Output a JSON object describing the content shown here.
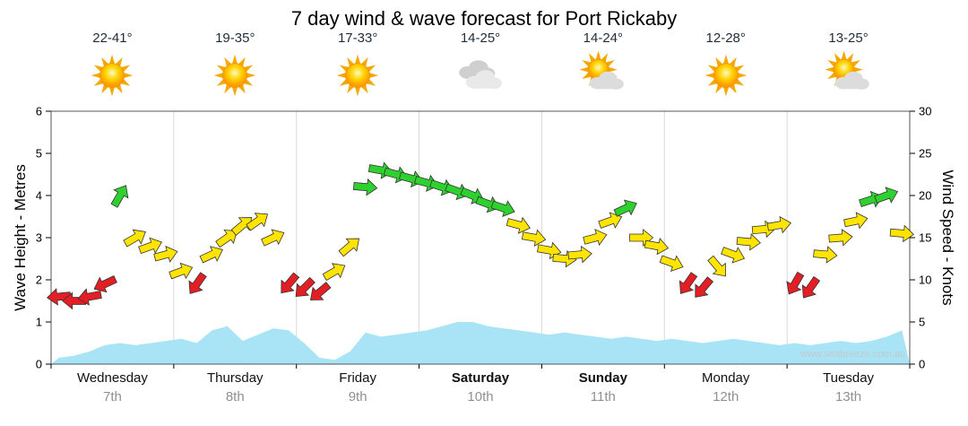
{
  "title": "7 day wind & wave forecast for Port Rickaby",
  "watermark": "www.seabreeze.com.au",
  "days": [
    {
      "name": "Wednesday",
      "date": "7th",
      "temp": "22-41°",
      "icon": "sunny",
      "weekend": false
    },
    {
      "name": "Thursday",
      "date": "8th",
      "temp": "19-35°",
      "icon": "sunny",
      "weekend": false
    },
    {
      "name": "Friday",
      "date": "9th",
      "temp": "17-33°",
      "icon": "sunny",
      "weekend": false
    },
    {
      "name": "Saturday",
      "date": "10th",
      "temp": "14-25°",
      "icon": "cloudy",
      "weekend": true
    },
    {
      "name": "Sunday",
      "date": "11th",
      "temp": "14-24°",
      "icon": "partly-cloudy",
      "weekend": true
    },
    {
      "name": "Monday",
      "date": "12th",
      "temp": "12-28°",
      "icon": "sunny",
      "weekend": false
    },
    {
      "name": "Tuesday",
      "date": "13th",
      "temp": "13-25°",
      "icon": "partly-cloudy",
      "weekend": false
    }
  ],
  "chart_data": {
    "type": "area",
    "title": "7 day wind & wave forecast for Port Rickaby",
    "points_per_day": 8,
    "categories": [
      "Wednesday 7th",
      "Thursday 8th",
      "Friday 9th",
      "Saturday 10th",
      "Sunday 11th",
      "Monday 12th",
      "Tuesday 13th"
    ],
    "y_left": {
      "label": "Wave Height - Metres",
      "min": 0,
      "max": 6,
      "ticks": [
        0,
        1,
        2,
        3,
        4,
        5,
        6
      ]
    },
    "y_right": {
      "label": "Wind Speed - Knots",
      "min": 0,
      "max": 30,
      "ticks": [
        0,
        5,
        10,
        15,
        20,
        25,
        30
      ]
    },
    "grid": "vertical-day-boundaries",
    "legend": "none",
    "series": [
      {
        "name": "Wind Speed",
        "type": "wind-arrows",
        "axis": "right",
        "units": "knots",
        "values": [
          8,
          7.5,
          8,
          9.5,
          20,
          15,
          14,
          13,
          11,
          9.5,
          13,
          15,
          16.5,
          17,
          15,
          9.5,
          9,
          8.5,
          11,
          14,
          21,
          23,
          22.5,
          22,
          21.5,
          21,
          20.5,
          20,
          19,
          18.5,
          16.5,
          15,
          13.5,
          12.5,
          13,
          15,
          17,
          18.5,
          15,
          14,
          12,
          9.5,
          9,
          11.5,
          13,
          14.5,
          16,
          16.5,
          9.5,
          9,
          13,
          15,
          17,
          19.5,
          20,
          15.5
        ],
        "directions_deg": [
          265,
          270,
          260,
          245,
          30,
          60,
          70,
          75,
          70,
          215,
          65,
          55,
          50,
          55,
          65,
          220,
          225,
          230,
          60,
          50,
          95,
          100,
          105,
          105,
          105,
          108,
          110,
          112,
          110,
          108,
          105,
          100,
          100,
          95,
          85,
          75,
          70,
          65,
          90,
          100,
          110,
          215,
          220,
          140,
          110,
          95,
          85,
          80,
          210,
          215,
          95,
          85,
          78,
          72,
          70,
          95
        ]
      },
      {
        "name": "Wave Height",
        "type": "area",
        "axis": "left",
        "units": "metres",
        "values": [
          0.15,
          0.2,
          0.3,
          0.45,
          0.5,
          0.45,
          0.5,
          0.55,
          0.6,
          0.5,
          0.8,
          0.9,
          0.55,
          0.7,
          0.85,
          0.8,
          0.5,
          0.15,
          0.1,
          0.3,
          0.75,
          0.65,
          0.7,
          0.75,
          0.8,
          0.9,
          1.0,
          1.0,
          0.9,
          0.85,
          0.8,
          0.75,
          0.7,
          0.75,
          0.7,
          0.65,
          0.6,
          0.65,
          0.6,
          0.55,
          0.6,
          0.55,
          0.5,
          0.55,
          0.6,
          0.55,
          0.5,
          0.45,
          0.5,
          0.45,
          0.5,
          0.55,
          0.5,
          0.55,
          0.65,
          0.8
        ]
      }
    ],
    "wind_speed_thresholds_kn": {
      "light_below": 10,
      "fresh_from": 18
    },
    "colors": {
      "wave_fill": "#a8e4f6",
      "wind_light": "#e31e24",
      "wind_moderate": "#ffe400",
      "wind_fresh": "#2fd12f",
      "grid_line": "#d8d8d8",
      "plot_border": "#555555"
    }
  }
}
